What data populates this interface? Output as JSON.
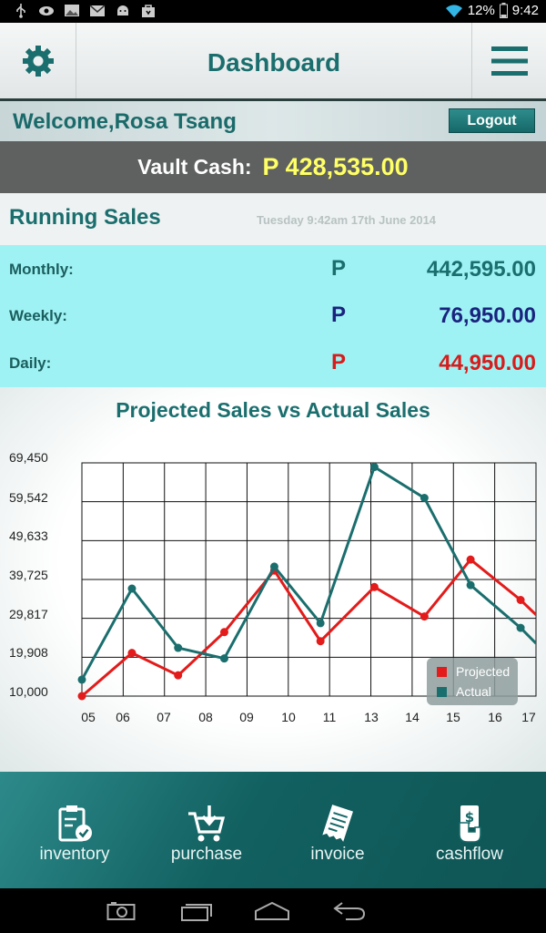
{
  "status_bar": {
    "battery": "12%",
    "time": "9:42",
    "icons": [
      "usb-icon",
      "eye-icon",
      "image-icon",
      "mail-icon",
      "android-icon",
      "bag-icon",
      "wifi-icon",
      "battery-icon"
    ]
  },
  "header": {
    "title": "Dashboard",
    "left_icon": "gear-icon",
    "right_icon": "menu-icon"
  },
  "welcome": {
    "text": "Welcome,Rosa Tsang",
    "logout_label": "Logout"
  },
  "vault": {
    "label": "Vault Cash:",
    "value": "P 428,535.00"
  },
  "running_sales": {
    "title": "Running Sales",
    "date": "Tuesday 9:42am 17th June 2014",
    "rows": [
      {
        "label": "Monthly:",
        "currency": "P",
        "value": "442,595.00",
        "color": "#1b6e6e"
      },
      {
        "label": "Weekly:",
        "currency": "P",
        "value": "76,950.00",
        "color": "#1a237e"
      },
      {
        "label": "Daily:",
        "currency": "P",
        "value": "44,950.00",
        "color": "#d81b1b"
      }
    ]
  },
  "chart_data": {
    "type": "line",
    "title": "Projected Sales vs Actual Sales",
    "x_tick_labels": [
      "05",
      "06",
      "07",
      "08",
      "09",
      "10",
      "11",
      "13",
      "14",
      "15",
      "16",
      "17"
    ],
    "y_tick_labels": [
      "69,450",
      "59,542",
      "49,633",
      "39,725",
      "29,817",
      "19,908",
      "10,000"
    ],
    "ylim": [
      10000,
      69450
    ],
    "grid": true,
    "legend_position": "bottom-right",
    "series": [
      {
        "name": "Projected",
        "color": "#e31b1b",
        "x": [
          5.0,
          6.3,
          7.5,
          8.7,
          10.0,
          11.2,
          12.6,
          13.9,
          15.1,
          16.4
        ],
        "values": [
          10000,
          21000,
          15300,
          26300,
          42000,
          24000,
          37800,
          30300,
          44800,
          34500
        ]
      },
      {
        "name": "Actual",
        "color": "#1b6e6e",
        "x": [
          5.0,
          6.3,
          7.5,
          8.7,
          10.0,
          11.2,
          12.6,
          13.9,
          15.1,
          16.4
        ],
        "values": [
          14200,
          37400,
          22300,
          19600,
          43000,
          28600,
          68400,
          60500,
          38300,
          27400
        ]
      }
    ]
  },
  "bottom_nav": {
    "items": [
      {
        "label": "inventory",
        "icon": "clipboard-check-icon"
      },
      {
        "label": "purchase",
        "icon": "cart-download-icon"
      },
      {
        "label": "invoice",
        "icon": "receipt-icon"
      },
      {
        "label": "cashflow",
        "icon": "hand-money-icon"
      }
    ]
  },
  "system_nav": {
    "icons": [
      "camera-icon",
      "recent-apps-icon",
      "home-icon",
      "back-icon"
    ]
  }
}
